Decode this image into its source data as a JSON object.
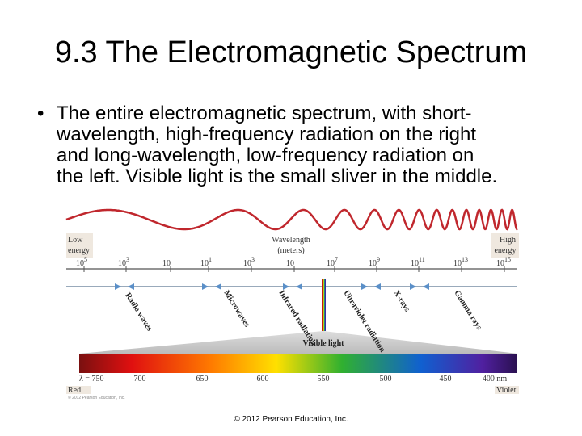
{
  "header": {
    "title": "9.3 The Electromagnetic Spectrum"
  },
  "bullet": {
    "lines": [
      "The entire electromagnetic spectrum, with short-",
      "wavelength, high-frequency radiation on the right",
      "and long-wavelength, low-frequency radiation on",
      "the left. Visible light is the small sliver in the middle."
    ]
  },
  "diagram": {
    "low_energy": [
      "Low",
      "energy"
    ],
    "high_energy": [
      "High",
      "energy"
    ],
    "axis_title": [
      "Wavelength",
      "(meters)"
    ],
    "ticks": [
      {
        "base": "10",
        "exp": "5"
      },
      {
        "base": "10",
        "exp": "3"
      },
      {
        "base": "10"
      },
      {
        "base": "10",
        "exp": "1"
      },
      {
        "base": "10",
        "exp": "3"
      },
      {
        "base": "10"
      },
      {
        "base": "10",
        "exp": "7"
      },
      {
        "base": "10",
        "exp": "9"
      },
      {
        "base": "10",
        "exp": "11"
      },
      {
        "base": "10",
        "exp": "13"
      },
      {
        "base": "10",
        "exp": "15"
      }
    ],
    "regions": [
      "Radio waves",
      "Microwaves",
      "Infrared radiation",
      "Ultraviolet radiation",
      "X-rays",
      "Gamma rays"
    ],
    "visible_light": "Visible light",
    "wavelengths": [
      "λ = 750",
      "700",
      "650",
      "600",
      "550",
      "500",
      "450",
      "400 nm"
    ],
    "red": "Red",
    "violet": "Violet",
    "credit": "© 2012 Pearson Education, Inc."
  },
  "footer": "© 2012 Pearson Education, Inc."
}
